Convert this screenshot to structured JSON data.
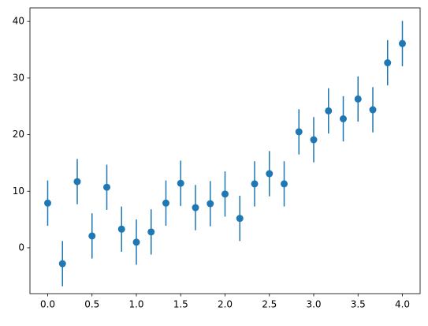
{
  "chart_data": {
    "type": "errorbar",
    "x": [
      0,
      0.1667,
      0.3333,
      0.5,
      0.6667,
      0.8333,
      1.0,
      1.1667,
      1.3333,
      1.5,
      1.6667,
      1.8333,
      2.0,
      2.1667,
      2.3333,
      2.5,
      2.6667,
      2.8333,
      3.0,
      3.1667,
      3.3333,
      3.5,
      3.6667,
      3.8333,
      4.0
    ],
    "values": [
      7.9,
      -2.8,
      11.7,
      2.1,
      10.7,
      3.3,
      1.0,
      2.8,
      7.9,
      11.4,
      7.1,
      7.8,
      9.5,
      5.2,
      11.3,
      13.1,
      11.3,
      20.5,
      19.1,
      24.2,
      22.8,
      26.3,
      24.4,
      32.7,
      36.1
    ],
    "errors": [
      4,
      4,
      4,
      4,
      4,
      4,
      4,
      4,
      4,
      4,
      4,
      4,
      4,
      4,
      4,
      4,
      4,
      4,
      4,
      4,
      4,
      4,
      4,
      4,
      4
    ],
    "color": "#1f77b4",
    "xlim": [
      -0.2,
      4.2
    ],
    "xticks": [
      {
        "value": 0,
        "label": "0.0"
      },
      {
        "value": 0.5,
        "label": "0.5"
      },
      {
        "value": 1,
        "label": "1.0"
      },
      {
        "value": 1.5,
        "label": "1.5"
      },
      {
        "value": 2,
        "label": "2.0"
      },
      {
        "value": 2.5,
        "label": "2.5"
      },
      {
        "value": 3,
        "label": "3.0"
      },
      {
        "value": 3.5,
        "label": "3.5"
      },
      {
        "value": 4,
        "label": "4.0"
      }
    ],
    "ylim": [
      -8.1,
      42.4
    ],
    "yticks": [
      0,
      10,
      20,
      30,
      40
    ]
  }
}
